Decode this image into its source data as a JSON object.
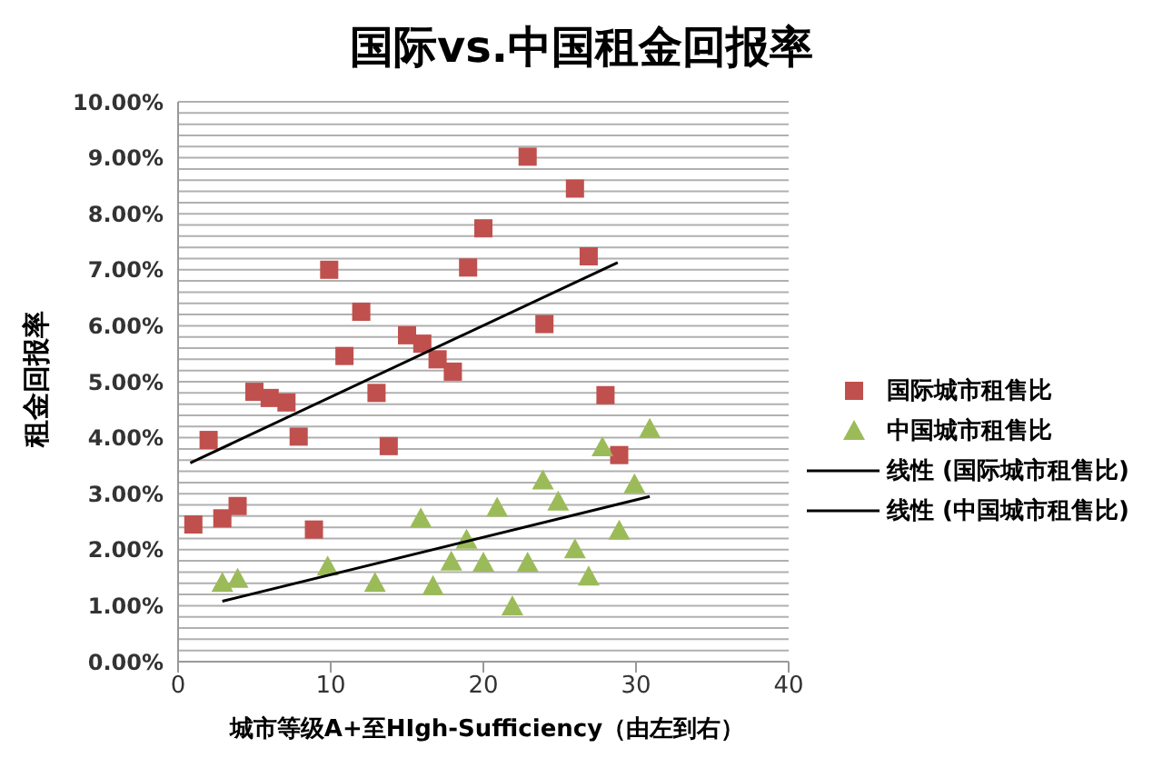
{
  "chart_data": {
    "type": "scatter",
    "title": "国际vs.中国租金回报率",
    "xlabel": "城市等级A+至HIgh-Sufficiency（由左到右）",
    "ylabel": "租金回报率",
    "xlim": [
      0,
      40
    ],
    "xticks": [
      0,
      10,
      20,
      30,
      40
    ],
    "ylim": [
      0,
      10
    ],
    "yticks": [
      {
        "value": 0,
        "label": "0.00%"
      },
      {
        "value": 0.2,
        "label": null
      },
      {
        "value": 0.4,
        "label": null
      },
      {
        "value": 0.6,
        "label": null
      },
      {
        "value": 0.8,
        "label": null
      },
      {
        "value": 1,
        "label": "1.00%"
      },
      {
        "value": 1.2,
        "label": null
      },
      {
        "value": 1.4,
        "label": null
      },
      {
        "value": 1.6,
        "label": null
      },
      {
        "value": 1.8,
        "label": null
      },
      {
        "value": 2,
        "label": "2.00%"
      },
      {
        "value": 2.2,
        "label": null
      },
      {
        "value": 2.4,
        "label": null
      },
      {
        "value": 2.6,
        "label": null
      },
      {
        "value": 2.8,
        "label": null
      },
      {
        "value": 3,
        "label": "3.00%"
      },
      {
        "value": 3.2,
        "label": null
      },
      {
        "value": 3.4,
        "label": null
      },
      {
        "value": 3.6,
        "label": null
      },
      {
        "value": 3.8,
        "label": null
      },
      {
        "value": 4,
        "label": "4.00%"
      },
      {
        "value": 4.2,
        "label": null
      },
      {
        "value": 4.4,
        "label": null
      },
      {
        "value": 4.6,
        "label": null
      },
      {
        "value": 4.8,
        "label": null
      },
      {
        "value": 5,
        "label": "5.00%"
      },
      {
        "value": 5.2,
        "label": null
      },
      {
        "value": 5.4,
        "label": null
      },
      {
        "value": 5.6,
        "label": null
      },
      {
        "value": 5.8,
        "label": null
      },
      {
        "value": 6,
        "label": "6.00%"
      },
      {
        "value": 6.2,
        "label": null
      },
      {
        "value": 6.4,
        "label": null
      },
      {
        "value": 6.6,
        "label": null
      },
      {
        "value": 6.8,
        "label": null
      },
      {
        "value": 7,
        "label": "7.00%"
      },
      {
        "value": 7.2,
        "label": null
      },
      {
        "value": 7.4,
        "label": null
      },
      {
        "value": 7.6,
        "label": null
      },
      {
        "value": 7.8,
        "label": null
      },
      {
        "value": 8,
        "label": "8.00%"
      },
      {
        "value": 8.2,
        "label": null
      },
      {
        "value": 8.4,
        "label": null
      },
      {
        "value": 8.6,
        "label": null
      },
      {
        "value": 8.8,
        "label": null
      },
      {
        "value": 9,
        "label": "9.00%"
      },
      {
        "value": 9.2,
        "label": null
      },
      {
        "value": 9.4,
        "label": null
      },
      {
        "value": 9.6,
        "label": null
      },
      {
        "value": 9.8,
        "label": null
      },
      {
        "value": 10,
        "label": "10.00%"
      }
    ],
    "grid": "y",
    "legend": "right",
    "series": [
      {
        "name": "国际城市租售比",
        "marker": "square",
        "color": "#c0504d",
        "x": [
          1,
          2,
          2.9,
          3.9,
          5,
          6,
          7.1,
          7.9,
          8.9,
          9.9,
          10.9,
          12,
          13,
          13.8,
          15,
          16,
          17,
          18,
          19,
          20,
          22.9,
          24,
          26,
          26.9,
          28,
          28.9
        ],
        "values": [
          2.45,
          3.96,
          2.56,
          2.78,
          4.82,
          4.71,
          4.63,
          4.02,
          2.36,
          7.0,
          5.46,
          6.25,
          4.8,
          3.85,
          5.83,
          5.68,
          5.4,
          5.18,
          7.04,
          7.74,
          9.02,
          6.03,
          8.45,
          7.24,
          4.76,
          3.69
        ]
      },
      {
        "name": "中国城市租售比",
        "marker": "triangle",
        "color": "#9bbb59",
        "x": [
          2.9,
          3.9,
          9.8,
          12.9,
          15.9,
          16.7,
          17.9,
          18.9,
          20,
          20.9,
          21.9,
          22.9,
          23.9,
          24.9,
          26,
          26.9,
          27.8,
          28.9,
          29.9,
          30.9
        ],
        "values": [
          1.41,
          1.48,
          1.7,
          1.41,
          2.56,
          1.35,
          1.79,
          2.18,
          1.77,
          2.75,
          0.99,
          1.77,
          3.24,
          2.86,
          2.01,
          1.52,
          3.83,
          2.34,
          3.17,
          4.16
        ]
      },
      {
        "name": "线性 (国际城市租售比)",
        "type": "line",
        "marker": "none",
        "color": "#000000",
        "x": [
          0.8,
          28.8
        ],
        "values": [
          3.55,
          7.13
        ]
      },
      {
        "name": "线性 (中国城市租售比)",
        "type": "line",
        "marker": "none",
        "color": "#000000",
        "x": [
          2.9,
          30.9
        ],
        "values": [
          1.08,
          2.95
        ]
      }
    ]
  }
}
